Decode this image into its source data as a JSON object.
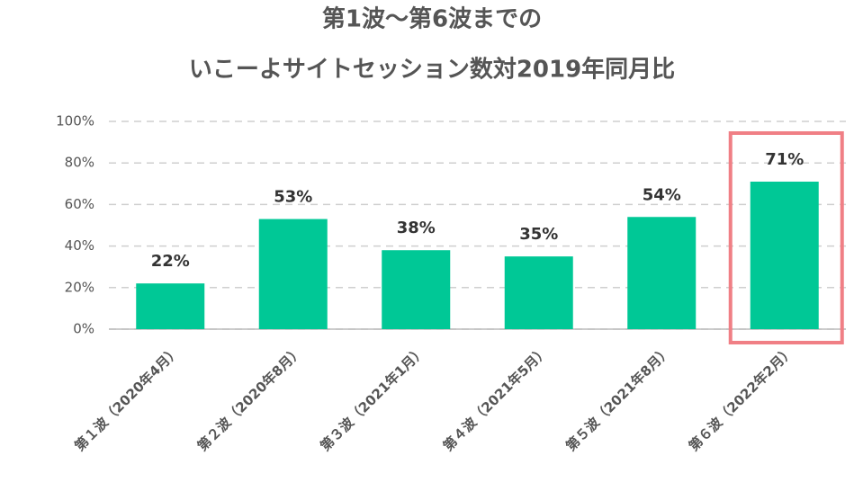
{
  "chart_data": {
    "type": "bar",
    "title": [
      "第1波～第6波までの",
      "いこーよサイトセッション数対2019年同月比"
    ],
    "categories": [
      "第１波（2020年4月）",
      "第２波（2020年8月）",
      "第３波（2021年1月）",
      "第４波（2021年5月）",
      "第５波（2021年8月）",
      "第６波（2022年2月）"
    ],
    "values": [
      22,
      53,
      38,
      35,
      54,
      71
    ],
    "value_labels": [
      "22%",
      "53%",
      "38%",
      "35%",
      "54%",
      "71%"
    ],
    "color": "#00c896",
    "ylim": [
      0,
      100
    ],
    "yticks": [
      {
        "value": 0,
        "label": "0%"
      },
      {
        "value": 20,
        "label": "20%"
      },
      {
        "value": 40,
        "label": "40%"
      },
      {
        "value": 60,
        "label": "60%"
      },
      {
        "value": 80,
        "label": "80%"
      },
      {
        "value": 100,
        "label": "100%"
      }
    ],
    "grid": true,
    "highlight": {
      "index": 5,
      "color": "#f07f85"
    }
  }
}
